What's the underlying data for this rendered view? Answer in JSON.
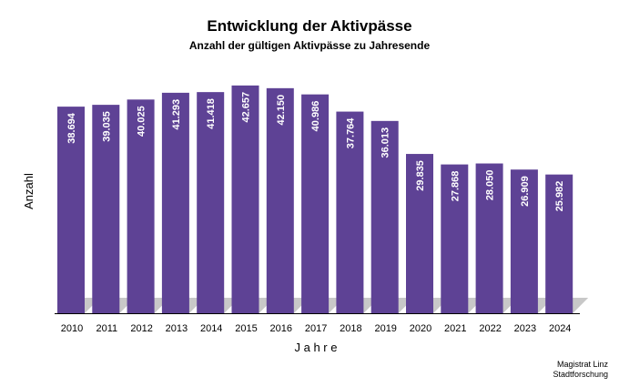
{
  "chart_data": {
    "type": "bar",
    "title": "Entwicklung der Aktivpässe",
    "subtitle": "Anzahl der gültigen Aktivpässe zu Jahresende",
    "xlabel": "J a h r e",
    "ylabel": "Anzahl",
    "categories": [
      "2010",
      "2011",
      "2012",
      "2013",
      "2014",
      "2015",
      "2016",
      "2017",
      "2018",
      "2019",
      "2020",
      "2021",
      "2022",
      "2023",
      "2024"
    ],
    "values": [
      38694,
      39035,
      40025,
      41293,
      41418,
      42657,
      42150,
      40986,
      37764,
      36013,
      29835,
      27868,
      28050,
      26909,
      25982
    ],
    "value_labels": [
      "38.694",
      "39.035",
      "40.025",
      "41.293",
      "41.418",
      "42.657",
      "42.150",
      "40.986",
      "37.764",
      "36.013",
      "29.835",
      "27.868",
      "28.050",
      "26.909",
      "25.982"
    ],
    "ylim": [
      0,
      44000
    ],
    "grid": false,
    "legend": "none",
    "bar_color": "#5e4295",
    "shadow_color": "#c8c8c8"
  },
  "footer": {
    "line1": "Magistrat Linz",
    "line2": "Stadtforschung"
  }
}
